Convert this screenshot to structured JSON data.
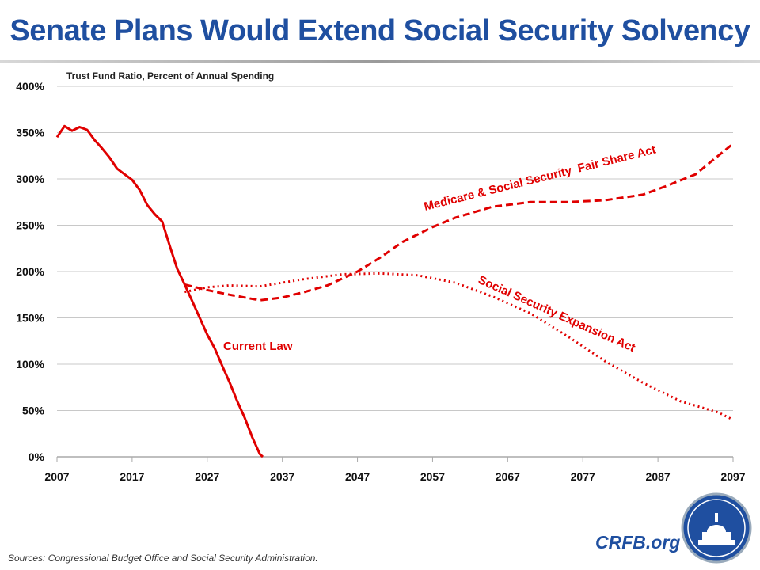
{
  "title": "Senate Plans Would Extend Social Security Solvency",
  "footer": {
    "source": "Sources: Congressional Budget Office and Social Security Administration.",
    "brand": "CRFB.org"
  },
  "colors": {
    "title": "#1f4fa0",
    "series": "#e00000",
    "grid": "#c8c8c8"
  },
  "chart_data": {
    "type": "line",
    "ylabel": "Trust Fund Ratio, Percent of Annual Spending",
    "xlim": [
      2007,
      2097
    ],
    "ylim": [
      0,
      400
    ],
    "xticks": [
      "2007",
      "2017",
      "2027",
      "2037",
      "2047",
      "2057",
      "2067",
      "2077",
      "2087",
      "2097"
    ],
    "yticks": [
      "0%",
      "50%",
      "100%",
      "150%",
      "200%",
      "250%",
      "300%",
      "350%",
      "400%"
    ],
    "grid": true,
    "series": [
      {
        "name": "Current Law",
        "style": "solid",
        "x": [
          2007,
          2008,
          2009,
          2010,
          2011,
          2012,
          2013,
          2014,
          2015,
          2016,
          2017,
          2018,
          2019,
          2020,
          2021,
          2022,
          2023,
          2024,
          2025,
          2026,
          2027,
          2028,
          2029,
          2030,
          2031,
          2032,
          2033,
          2034,
          2034.4
        ],
        "y": [
          345,
          357,
          352,
          356,
          353,
          342,
          333,
          323,
          311,
          305,
          299,
          288,
          272,
          262,
          254,
          228,
          203,
          186,
          168,
          150,
          132,
          117,
          98,
          80,
          60,
          42,
          21,
          3,
          0
        ]
      },
      {
        "name": "Medicare & Social Security  Fair Share Act",
        "style": "dashed",
        "x": [
          2024,
          2027,
          2030,
          2034,
          2037,
          2040,
          2043,
          2047,
          2050,
          2053,
          2057,
          2060,
          2065,
          2070,
          2075,
          2080,
          2085,
          2088,
          2092,
          2097
        ],
        "y": [
          186,
          180,
          175,
          169,
          172,
          178,
          185,
          200,
          215,
          232,
          248,
          258,
          270,
          275,
          275,
          277,
          283,
          292,
          305,
          338
        ]
      },
      {
        "name": "Social Security Expansion Act",
        "style": "dotted",
        "x": [
          2024,
          2027,
          2030,
          2034,
          2040,
          2045,
          2050,
          2055,
          2060,
          2065,
          2070,
          2075,
          2080,
          2085,
          2090,
          2095,
          2097
        ],
        "y": [
          178,
          183,
          185,
          184,
          192,
          197,
          198,
          196,
          188,
          173,
          155,
          130,
          103,
          80,
          60,
          48,
          40
        ]
      }
    ]
  }
}
